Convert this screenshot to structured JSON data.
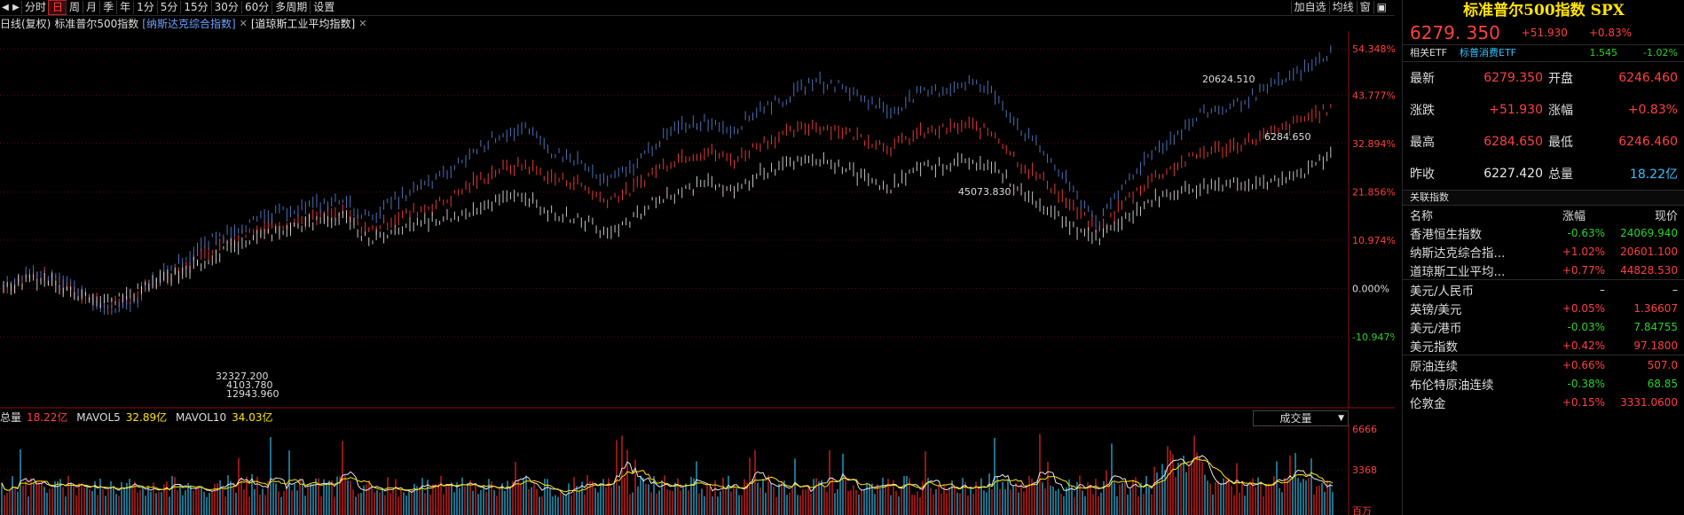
{
  "toolbar": {
    "items": [
      "分时",
      "日",
      "周",
      "月",
      "季",
      "年",
      "1分",
      "5分",
      "15分",
      "30分",
      "60分",
      "多周期",
      "设置"
    ],
    "active": "日",
    "right_items": [
      "加自选",
      "均线",
      "窗"
    ]
  },
  "legend": {
    "period": "日线(复权)",
    "main": "标准普尔500指数",
    "nasdaq": "[纳斯达克综合指数]",
    "dow": "[道琼斯工业平均指数]"
  },
  "chart_data": {
    "type": "line",
    "title": "",
    "y_axis_percent_ticks": [
      "54.348%",
      "43.777%",
      "32.894%",
      "21.856%",
      "10.974%",
      "0.000%",
      "-10.947%"
    ],
    "y_tick_values": [
      54.348,
      43.777,
      32.894,
      21.856,
      10.974,
      0.0,
      -10.947
    ],
    "series": [
      {
        "name": "标准普尔500指数",
        "color": "#ff4040",
        "percent_change": [
          0,
          3,
          2,
          -1,
          -4,
          -2,
          2,
          5,
          9,
          12,
          14,
          15,
          16,
          17,
          13,
          16,
          18,
          20,
          24,
          27,
          28,
          25,
          24,
          20,
          22,
          27,
          30,
          31,
          29,
          33,
          35,
          37,
          36,
          34,
          32,
          35,
          36,
          37,
          35,
          28,
          24,
          18,
          13,
          20,
          25,
          28,
          31,
          32,
          34,
          36,
          39,
          41
        ]
      },
      {
        "name": "纳斯达克综合指数",
        "color": "#5b86d6",
        "percent_change": [
          0,
          4,
          3,
          -1,
          -5,
          -3,
          3,
          7,
          11,
          14,
          16,
          18,
          19,
          20,
          16,
          20,
          23,
          26,
          31,
          35,
          36,
          31,
          29,
          24,
          27,
          33,
          37,
          38,
          36,
          41,
          43,
          47,
          46,
          43,
          40,
          44,
          45,
          47,
          44,
          36,
          30,
          22,
          15,
          24,
          31,
          35,
          40,
          41,
          44,
          47,
          50,
          54
        ]
      },
      {
        "name": "道琼斯工业平均指数",
        "color": "#e8e8e8",
        "percent_change": [
          0,
          2,
          1,
          -2,
          -3,
          -1,
          2,
          4,
          7,
          10,
          12,
          14,
          15,
          16,
          11,
          13,
          15,
          16,
          18,
          20,
          21,
          17,
          16,
          13,
          15,
          20,
          22,
          24,
          22,
          26,
          28,
          29,
          28,
          25,
          23,
          27,
          28,
          29,
          27,
          22,
          18,
          14,
          11,
          16,
          20,
          22,
          23,
          24,
          24,
          24,
          27,
          31
        ]
      }
    ],
    "annotations": [
      "20624.510",
      "6284.650",
      "45073.830",
      "32327.200",
      "4103.780",
      "12943.960"
    ],
    "volume": {
      "total_label": "总量",
      "total": "18.22亿",
      "mavol5_label": "MAVOL5",
      "mavol5": "32.89亿",
      "mavol10_label": "MAVOL10",
      "mavol10": "34.03亿",
      "y_ticks": [
        "6666",
        "3368",
        "百万"
      ],
      "selector": "成交量"
    }
  },
  "panel": {
    "title": "标准普尔500指数 SPX",
    "price": "6279. 350",
    "change": "+51.930",
    "change_pct": "+0.83%",
    "etf": {
      "label": "相关ETF",
      "name": "标普消费ETF",
      "price": "1.545",
      "pct": "-1.02%"
    },
    "quotes": [
      {
        "k": "最新",
        "v": "6279.350",
        "vc": "red",
        "k2": "开盘",
        "v2": "6246.460",
        "v2c": "red"
      },
      {
        "k": "涨跌",
        "v": "+51.930",
        "vc": "red",
        "k2": "涨幅",
        "v2": "+0.83%",
        "v2c": "red"
      },
      {
        "k": "最高",
        "v": "6284.650",
        "vc": "red",
        "k2": "最低",
        "v2": "6246.460",
        "v2c": "red"
      },
      {
        "k": "昨收",
        "v": "6227.420",
        "vc": "white",
        "k2": "总量",
        "v2": "18.22亿",
        "v2c": "cyan"
      }
    ],
    "related_title": "关联指数",
    "columns": {
      "name": "名称",
      "pct": "涨幅",
      "price": "现价"
    },
    "related": [
      {
        "name": "香港恒生指数",
        "pct": "-0.63%",
        "pc": "green",
        "price": "24069.940",
        "qc": "green",
        "sep": false
      },
      {
        "name": "纳斯达克综合指...",
        "pct": "+1.02%",
        "pc": "red",
        "price": "20601.100",
        "qc": "red",
        "sep": false
      },
      {
        "name": "道琼斯工业平均...",
        "pct": "+0.77%",
        "pc": "red",
        "price": "44828.530",
        "qc": "red",
        "sep": false
      },
      {
        "name": "美元/人民币",
        "pct": "–",
        "pc": "white",
        "price": "–",
        "qc": "white",
        "sep": true
      },
      {
        "name": "英镑/美元",
        "pct": "+0.05%",
        "pc": "red",
        "price": "1.36607",
        "qc": "red",
        "sep": false
      },
      {
        "name": "美元/港币",
        "pct": "-0.03%",
        "pc": "green",
        "price": "7.84755",
        "qc": "green",
        "sep": false
      },
      {
        "name": "美元指数",
        "pct": "+0.42%",
        "pc": "red",
        "price": "97.1800",
        "qc": "red",
        "sep": false
      },
      {
        "name": "原油连续",
        "pct": "+0.66%",
        "pc": "red",
        "price": "507.0",
        "qc": "red",
        "sep": true
      },
      {
        "name": "布伦特原油连续",
        "pct": "-0.38%",
        "pc": "green",
        "price": "68.85",
        "qc": "green",
        "sep": false
      },
      {
        "name": "伦敦金",
        "pct": "+0.15%",
        "pc": "red",
        "price": "3331.0600",
        "qc": "red",
        "sep": false
      }
    ]
  }
}
